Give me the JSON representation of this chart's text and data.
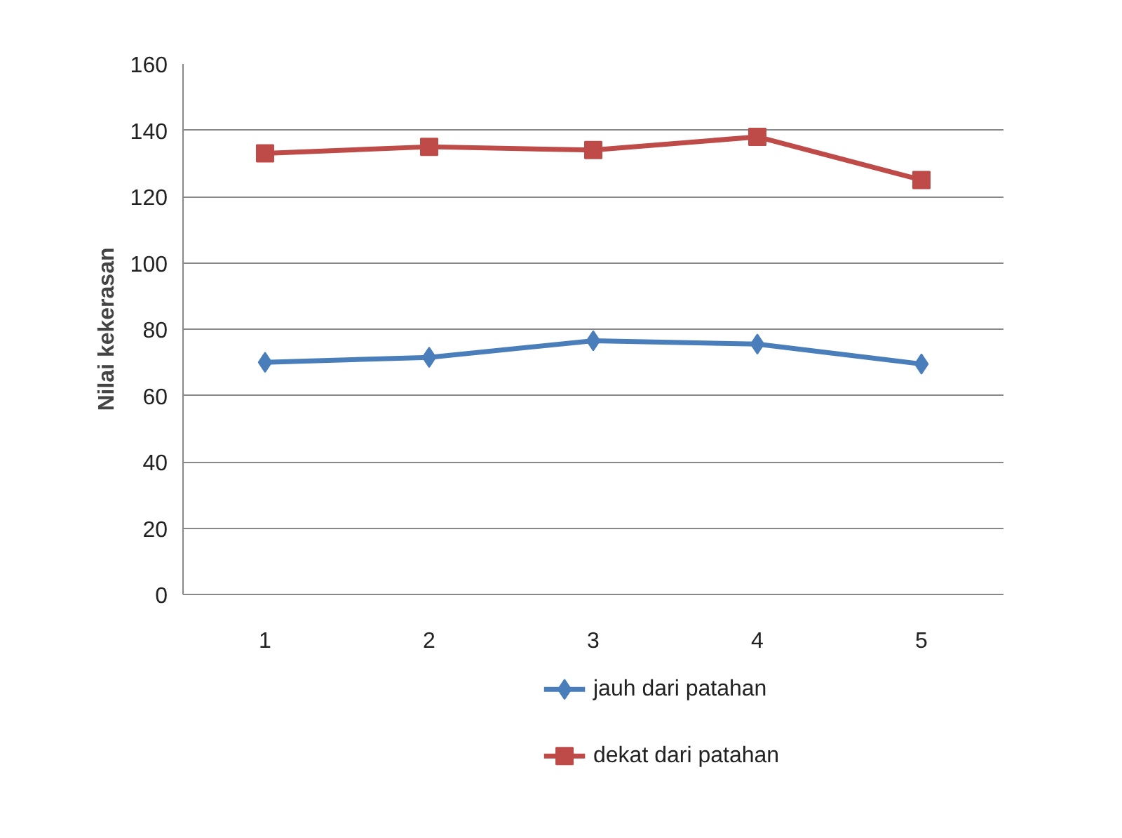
{
  "chart_data": {
    "type": "line",
    "ylabel": "Nilai kekerasan",
    "categories": [
      "1",
      "2",
      "3",
      "4",
      "5"
    ],
    "series": [
      {
        "name": "jauh dari patahan",
        "color": "#4a7ebb",
        "marker": "diamond",
        "values": [
          70,
          71.5,
          76.5,
          75.5,
          69.5
        ]
      },
      {
        "name": "dekat dari patahan",
        "color": "#be4b48",
        "marker": "square",
        "values": [
          133,
          135,
          134,
          138,
          125
        ]
      }
    ],
    "ylim": [
      0,
      160
    ],
    "yticks": [
      0,
      20,
      40,
      60,
      80,
      100,
      120,
      140,
      160
    ],
    "grid": "y",
    "legend": "bottom",
    "line_style": "solid"
  }
}
